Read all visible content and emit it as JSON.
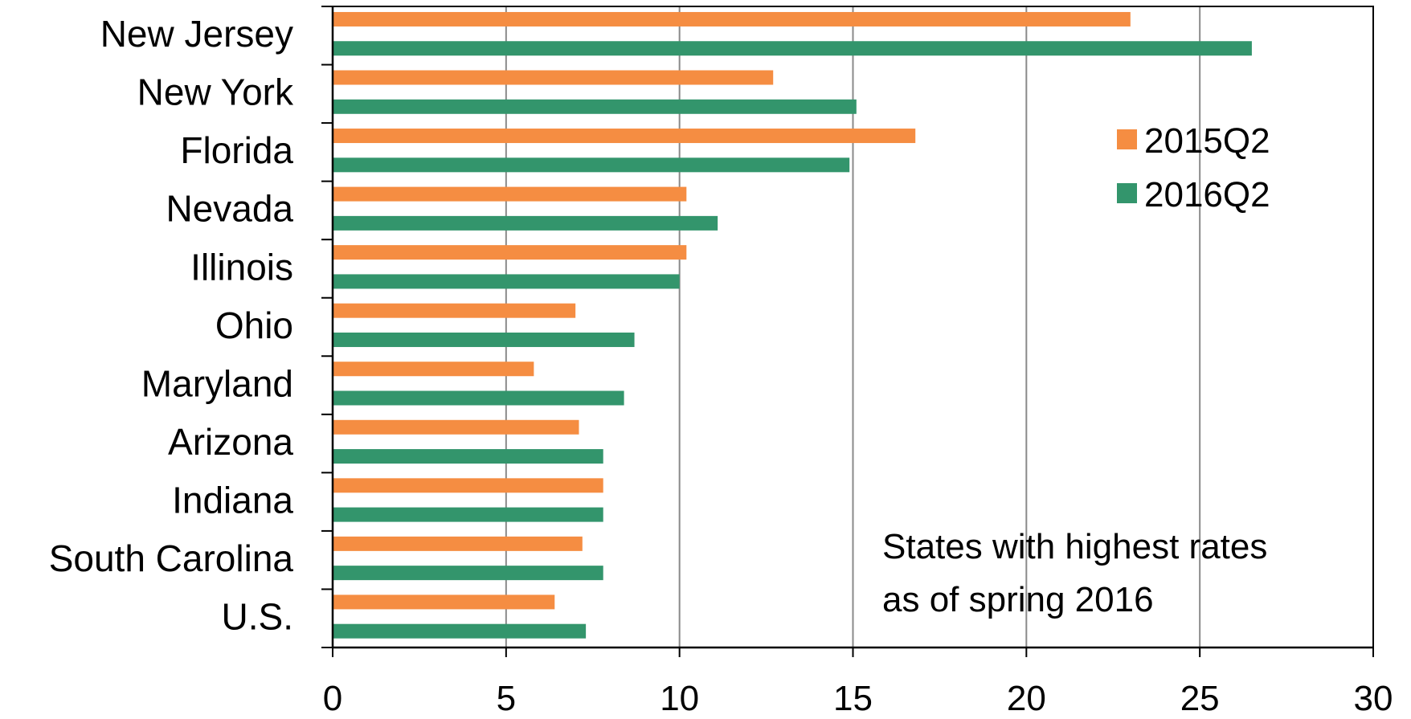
{
  "chart_data": {
    "type": "bar",
    "orientation": "horizontal",
    "categories": [
      "New Jersey",
      "New York",
      "Florida",
      "Nevada",
      "Illinois",
      "Ohio",
      "Maryland",
      "Arizona",
      "Indiana",
      "South Carolina",
      "U.S."
    ],
    "series": [
      {
        "name": "2015Q2",
        "color": "#F58D42",
        "values": [
          23.0,
          12.7,
          16.8,
          10.2,
          10.2,
          7.0,
          5.8,
          7.1,
          7.8,
          7.2,
          6.4
        ]
      },
      {
        "name": "2016Q2",
        "color": "#33956C",
        "values": [
          26.5,
          15.1,
          14.9,
          11.1,
          10.0,
          8.7,
          8.4,
          7.8,
          7.8,
          7.8,
          7.3
        ]
      }
    ],
    "xlim": [
      0,
      30
    ],
    "xticks": [
      "0",
      "5",
      "10",
      "15",
      "20",
      "25",
      "30"
    ],
    "grid": true,
    "legend_position": "top-right",
    "annotation": [
      "States with highest rates",
      "as of spring 2016"
    ]
  }
}
